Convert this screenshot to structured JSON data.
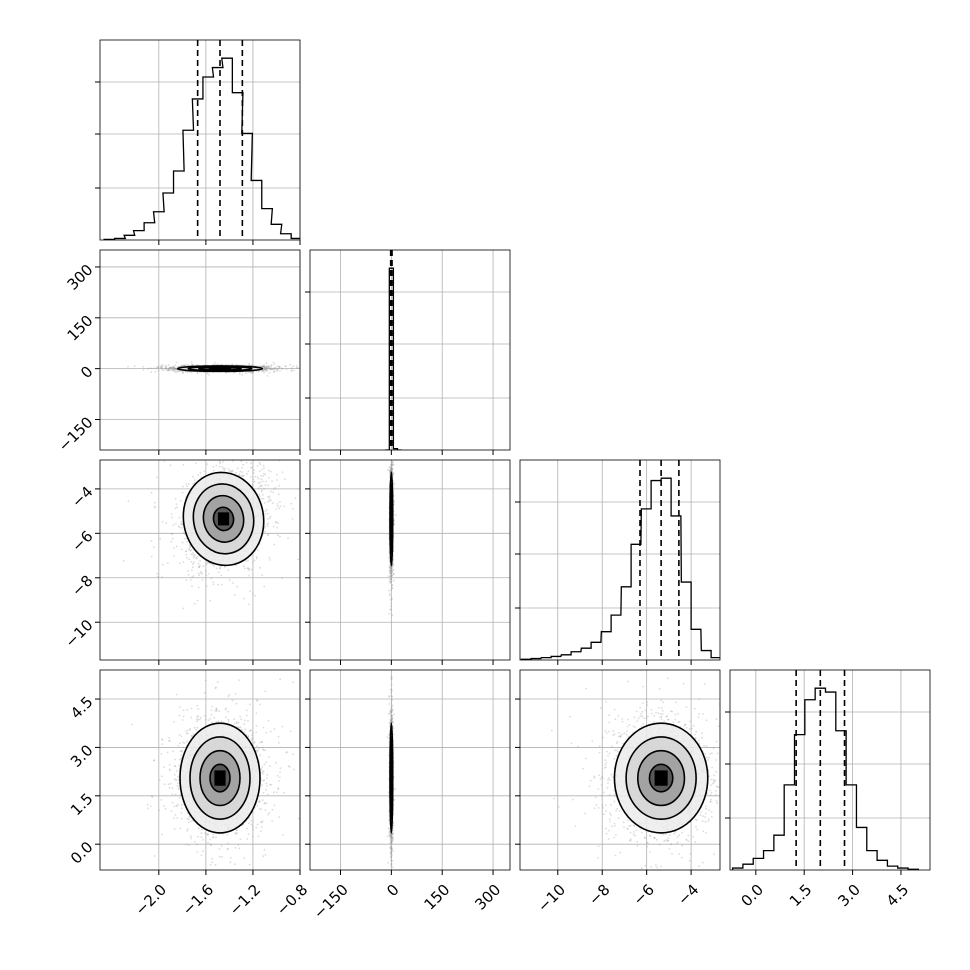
{
  "chart_data": {
    "type": "corner",
    "grid": true,
    "parameters": [
      {
        "range": [
          -2.5,
          -0.8
        ],
        "ticks": [
          -2.0,
          -1.6,
          -1.2,
          -0.8
        ],
        "tick_labels": [
          "−2.0",
          "−1.6",
          "−1.2",
          "−0.8"
        ],
        "quantiles": [
          -1.67,
          -1.48,
          -1.29
        ],
        "hist": [
          [
            -2.42,
            0.2
          ],
          [
            -2.33,
            0.5
          ],
          [
            -2.25,
            1.5
          ],
          [
            -2.17,
            3.0
          ],
          [
            -2.08,
            5.5
          ],
          [
            -2.0,
            9.0
          ],
          [
            -1.92,
            15.0
          ],
          [
            -1.83,
            22.0
          ],
          [
            -1.75,
            35.0
          ],
          [
            -1.67,
            45.0
          ],
          [
            -1.58,
            52.0
          ],
          [
            -1.5,
            55.0
          ],
          [
            -1.42,
            58.0
          ],
          [
            -1.33,
            47.0
          ],
          [
            -1.25,
            34.0
          ],
          [
            -1.17,
            19.0
          ],
          [
            -1.08,
            10.0
          ],
          [
            -1.0,
            5.0
          ],
          [
            -0.92,
            2.0
          ],
          [
            -0.83,
            0.5
          ]
        ]
      },
      {
        "range": [
          -240,
          350
        ],
        "ticks": [
          -150,
          0,
          150,
          300
        ],
        "tick_labels": [
          "−150",
          "0",
          "150",
          "300"
        ],
        "quantiles": [
          -2,
          0,
          2
        ],
        "hist": [
          [
            -12,
            0.0
          ],
          [
            0,
            280.0
          ],
          [
            12,
            2.0
          ],
          [
            24,
            0.0
          ]
        ]
      },
      {
        "range": [
          -11.7,
          -2.7
        ],
        "ticks": [
          -10,
          -8,
          -6,
          -4
        ],
        "tick_labels": [
          "−10",
          "−8",
          "−6",
          "−4"
        ],
        "quantiles": [
          -6.3,
          -5.35,
          -4.55
        ],
        "hist": [
          [
            -11.42,
            0.3
          ],
          [
            -10.98,
            0.6
          ],
          [
            -10.52,
            1.0
          ],
          [
            -10.08,
            1.5
          ],
          [
            -9.62,
            2.2
          ],
          [
            -9.18,
            3.5
          ],
          [
            -8.72,
            5.0
          ],
          [
            -8.28,
            7.5
          ],
          [
            -7.82,
            12.0
          ],
          [
            -7.38,
            19.0
          ],
          [
            -6.92,
            31.0
          ],
          [
            -6.48,
            49.0
          ],
          [
            -6.02,
            64.0
          ],
          [
            -5.58,
            76.0
          ],
          [
            -5.12,
            77.0
          ],
          [
            -4.68,
            61.0
          ],
          [
            -4.22,
            33.0
          ],
          [
            -3.78,
            13.0
          ],
          [
            -3.32,
            4.0
          ],
          [
            -2.88,
            1.0
          ]
        ]
      },
      {
        "range": [
          -0.8,
          5.4
        ],
        "ticks": [
          0.0,
          1.5,
          3.0,
          4.5
        ],
        "tick_labels": [
          "0.0",
          "1.5",
          "3.0",
          "4.5"
        ],
        "quantiles": [
          1.25,
          2.0,
          2.75
        ],
        "hist": [
          [
            -0.56,
            0.5
          ],
          [
            -0.24,
            1.5
          ],
          [
            0.08,
            3.0
          ],
          [
            0.4,
            5.0
          ],
          [
            0.72,
            9.0
          ],
          [
            1.04,
            22.0
          ],
          [
            1.36,
            35.0
          ],
          [
            1.68,
            44.0
          ],
          [
            2.0,
            47.0
          ],
          [
            2.32,
            46.0
          ],
          [
            2.64,
            36.0
          ],
          [
            2.96,
            22.0
          ],
          [
            3.28,
            11.0
          ],
          [
            3.6,
            5.0
          ],
          [
            3.92,
            2.5
          ],
          [
            4.24,
            1.0
          ],
          [
            4.56,
            0.5
          ],
          [
            4.88,
            0.2
          ]
        ]
      }
    ],
    "pairs": [
      {
        "row": 1,
        "col": 0,
        "center": [
          -1.48,
          0
        ],
        "sigma": [
          0.18,
          4
        ],
        "corr": 0.0
      },
      {
        "row": 2,
        "col": 0,
        "center": [
          -1.45,
          -5.35
        ],
        "sigma": [
          0.17,
          1.05
        ],
        "corr": 0.25
      },
      {
        "row": 2,
        "col": 1,
        "center": [
          0,
          -5.35
        ],
        "sigma": [
          2,
          1.05
        ],
        "corr": 0.0
      },
      {
        "row": 3,
        "col": 0,
        "center": [
          -1.48,
          2.05
        ],
        "sigma": [
          0.17,
          0.85
        ],
        "corr": 0.0
      },
      {
        "row": 3,
        "col": 1,
        "center": [
          0,
          2.05
        ],
        "sigma": [
          2,
          0.85
        ],
        "corr": 0.0
      },
      {
        "row": 3,
        "col": 2,
        "center": [
          -5.35,
          2.05
        ],
        "sigma": [
          1.05,
          0.85
        ],
        "corr": 0.0
      }
    ],
    "contour_levels": [
      0.5,
      1.0,
      1.5,
      2.0
    ]
  }
}
